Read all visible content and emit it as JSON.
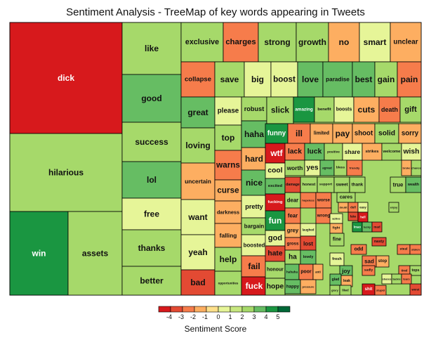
{
  "chart_data": {
    "type": "treemap",
    "title": "Sentiment Analysis - TreeMap of key words appearing in Tweets",
    "legend": {
      "title": "Sentiment Score",
      "ticks": [
        -4,
        -3,
        -2,
        -1,
        0,
        1,
        2,
        3,
        4,
        5
      ],
      "colors": [
        "#d7191c",
        "#e34a33",
        "#f67c4b",
        "#fdae61",
        "#fee08b",
        "#e6f598",
        "#c7e77f",
        "#a6d96a",
        "#66bd63",
        "#1a9641",
        "#006837"
      ]
    },
    "items": [
      {
        "word": "dick",
        "score": -4
      },
      {
        "word": "hilarious",
        "score": 2
      },
      {
        "word": "win",
        "score": 4
      },
      {
        "word": "assets",
        "score": 2
      },
      {
        "word": "like",
        "score": 2
      },
      {
        "word": "good",
        "score": 3
      },
      {
        "word": "success",
        "score": 2
      },
      {
        "word": "lol",
        "score": 3
      },
      {
        "word": "free",
        "score": 1
      },
      {
        "word": "thanks",
        "score": 2
      },
      {
        "word": "better",
        "score": 2
      },
      {
        "word": "exclusive",
        "score": 2
      },
      {
        "word": "charges",
        "score": -2
      },
      {
        "word": "strong",
        "score": 2
      },
      {
        "word": "growth",
        "score": 2
      },
      {
        "word": "no",
        "score": -1
      },
      {
        "word": "smart",
        "score": 1
      },
      {
        "word": "unclear",
        "score": -1
      },
      {
        "word": "collapse",
        "score": -2
      },
      {
        "word": "save",
        "score": 2
      },
      {
        "word": "big",
        "score": 1
      },
      {
        "word": "boost",
        "score": 1
      },
      {
        "word": "love",
        "score": 3
      },
      {
        "word": "paradise",
        "score": 3
      },
      {
        "word": "best",
        "score": 3
      },
      {
        "word": "gain",
        "score": 2
      },
      {
        "word": "pain",
        "score": -2
      },
      {
        "word": "great",
        "score": 3
      },
      {
        "word": "loving",
        "score": 2
      },
      {
        "word": "uncertain",
        "score": -1
      },
      {
        "word": "want",
        "score": 1
      },
      {
        "word": "yeah",
        "score": 1
      },
      {
        "word": "bad",
        "score": -3
      },
      {
        "word": "please",
        "score": 1
      },
      {
        "word": "top",
        "score": 2
      },
      {
        "word": "warns",
        "score": -2
      },
      {
        "word": "curse",
        "score": -1
      },
      {
        "word": "darkness",
        "score": -1
      },
      {
        "word": "falling",
        "score": -1
      },
      {
        "word": "help",
        "score": 2
      },
      {
        "word": "opportunities",
        "score": 2
      },
      {
        "word": "robust",
        "score": 2
      },
      {
        "word": "haha",
        "score": 3
      },
      {
        "word": "hard",
        "score": -1
      },
      {
        "word": "nice",
        "score": 3
      },
      {
        "word": "pretty",
        "score": 1
      },
      {
        "word": "bargain",
        "score": 2
      },
      {
        "word": "boosted",
        "score": 1
      },
      {
        "word": "fail",
        "score": -2
      },
      {
        "word": "fuck",
        "score": -4
      },
      {
        "word": "slick",
        "score": 2
      },
      {
        "word": "funny",
        "score": 4
      },
      {
        "word": "wtf",
        "score": -4
      },
      {
        "word": "cool",
        "score": 1
      },
      {
        "word": "excited",
        "score": 3
      },
      {
        "word": "fucking",
        "score": -4
      },
      {
        "word": "fun",
        "score": 4
      },
      {
        "word": "god",
        "score": 1
      },
      {
        "word": "hate",
        "score": -3
      },
      {
        "word": "honour",
        "score": 2
      },
      {
        "word": "hope",
        "score": 2
      },
      {
        "word": "amazing",
        "score": 4
      },
      {
        "word": "benefit",
        "score": 2
      },
      {
        "word": "boosts",
        "score": 1
      },
      {
        "word": "cuts",
        "score": -1
      },
      {
        "word": "death",
        "score": -2
      },
      {
        "word": "gift",
        "score": 2
      },
      {
        "word": "ill",
        "score": -2
      },
      {
        "word": "limited",
        "score": -1
      },
      {
        "word": "pay",
        "score": -1
      },
      {
        "word": "shoot",
        "score": -1
      },
      {
        "word": "solid",
        "score": 2
      },
      {
        "word": "sorry",
        "score": -1
      },
      {
        "word": "lack",
        "score": -2
      },
      {
        "word": "luck",
        "score": 3
      },
      {
        "word": "positive",
        "score": 2
      },
      {
        "word": "share",
        "score": 1
      },
      {
        "word": "strikes",
        "score": -1
      },
      {
        "word": "welcome",
        "score": 2
      },
      {
        "word": "wish",
        "score": 1
      },
      {
        "word": "worth",
        "score": 2
      },
      {
        "word": "yes",
        "score": 1
      },
      {
        "word": "agreat",
        "score": 3
      },
      {
        "word": "bless",
        "score": 2
      },
      {
        "word": "friendly",
        "score": -2
      },
      {
        "word": "broke",
        "score": -1
      },
      {
        "word": "chance",
        "score": 2
      },
      {
        "word": "damage",
        "score": -3
      },
      {
        "word": "honest",
        "score": 2
      },
      {
        "word": "support",
        "score": 2
      },
      {
        "word": "sweet",
        "score": 2
      },
      {
        "word": "thank",
        "score": 2
      },
      {
        "word": "true",
        "score": 2
      },
      {
        "word": "wealth",
        "score": 3
      },
      {
        "word": "dear",
        "score": 2
      },
      {
        "word": "hopeless",
        "score": -2
      },
      {
        "word": "worse",
        "score": -2
      },
      {
        "word": "cares",
        "score": 2
      },
      {
        "word": "doubt",
        "score": -1
      },
      {
        "word": "dull",
        "score": -2
      },
      {
        "word": "easy",
        "score": 1
      },
      {
        "word": "enjoy",
        "score": 2
      },
      {
        "word": "fear",
        "score": -2
      },
      {
        "word": "wrong",
        "score": -2
      },
      {
        "word": "active",
        "score": 1
      },
      {
        "word": "fight",
        "score": -1
      },
      {
        "word": "fake",
        "score": -3
      },
      {
        "word": "hell",
        "score": -4
      },
      {
        "word": "grey",
        "score": -1
      },
      {
        "word": "laughed",
        "score": 1
      },
      {
        "word": "gross",
        "score": -2
      },
      {
        "word": "lost",
        "score": -3
      },
      {
        "word": "fine",
        "score": 2
      },
      {
        "word": "lmao",
        "score": 4
      },
      {
        "word": "lucky",
        "score": 3
      },
      {
        "word": "mad",
        "score": -3
      },
      {
        "word": "nasty",
        "score": -3
      },
      {
        "word": "odd",
        "score": -2
      },
      {
        "word": "steal",
        "score": -2
      },
      {
        "word": "stolen",
        "score": -2
      },
      {
        "word": "ha",
        "score": 2
      },
      {
        "word": "lovely",
        "score": 3
      },
      {
        "word": "fresh",
        "score": 1
      },
      {
        "word": "sad",
        "score": -2
      },
      {
        "word": "stop",
        "score": -1
      },
      {
        "word": "joy",
        "score": 3
      },
      {
        "word": "sadly",
        "score": -2
      },
      {
        "word": "tired",
        "score": -2
      },
      {
        "word": "tops",
        "score": 2
      },
      {
        "word": "hahaha",
        "score": 3
      },
      {
        "word": "poor",
        "score": -2
      },
      {
        "word": "anti",
        "score": -1
      },
      {
        "word": "glad",
        "score": 3
      },
      {
        "word": "leak",
        "score": -1
      },
      {
        "word": "shares",
        "score": 1
      },
      {
        "word": "tackle",
        "score": 2
      },
      {
        "word": "tears",
        "score": -2
      },
      {
        "word": "happy",
        "score": 3
      },
      {
        "word": "pressure",
        "score": -1
      },
      {
        "word": "glory",
        "score": 2
      },
      {
        "word": "liked",
        "score": 2
      },
      {
        "word": "shit",
        "score": -4
      },
      {
        "word": "stupid",
        "score": -2
      },
      {
        "word": "worst",
        "score": -3
      }
    ]
  }
}
